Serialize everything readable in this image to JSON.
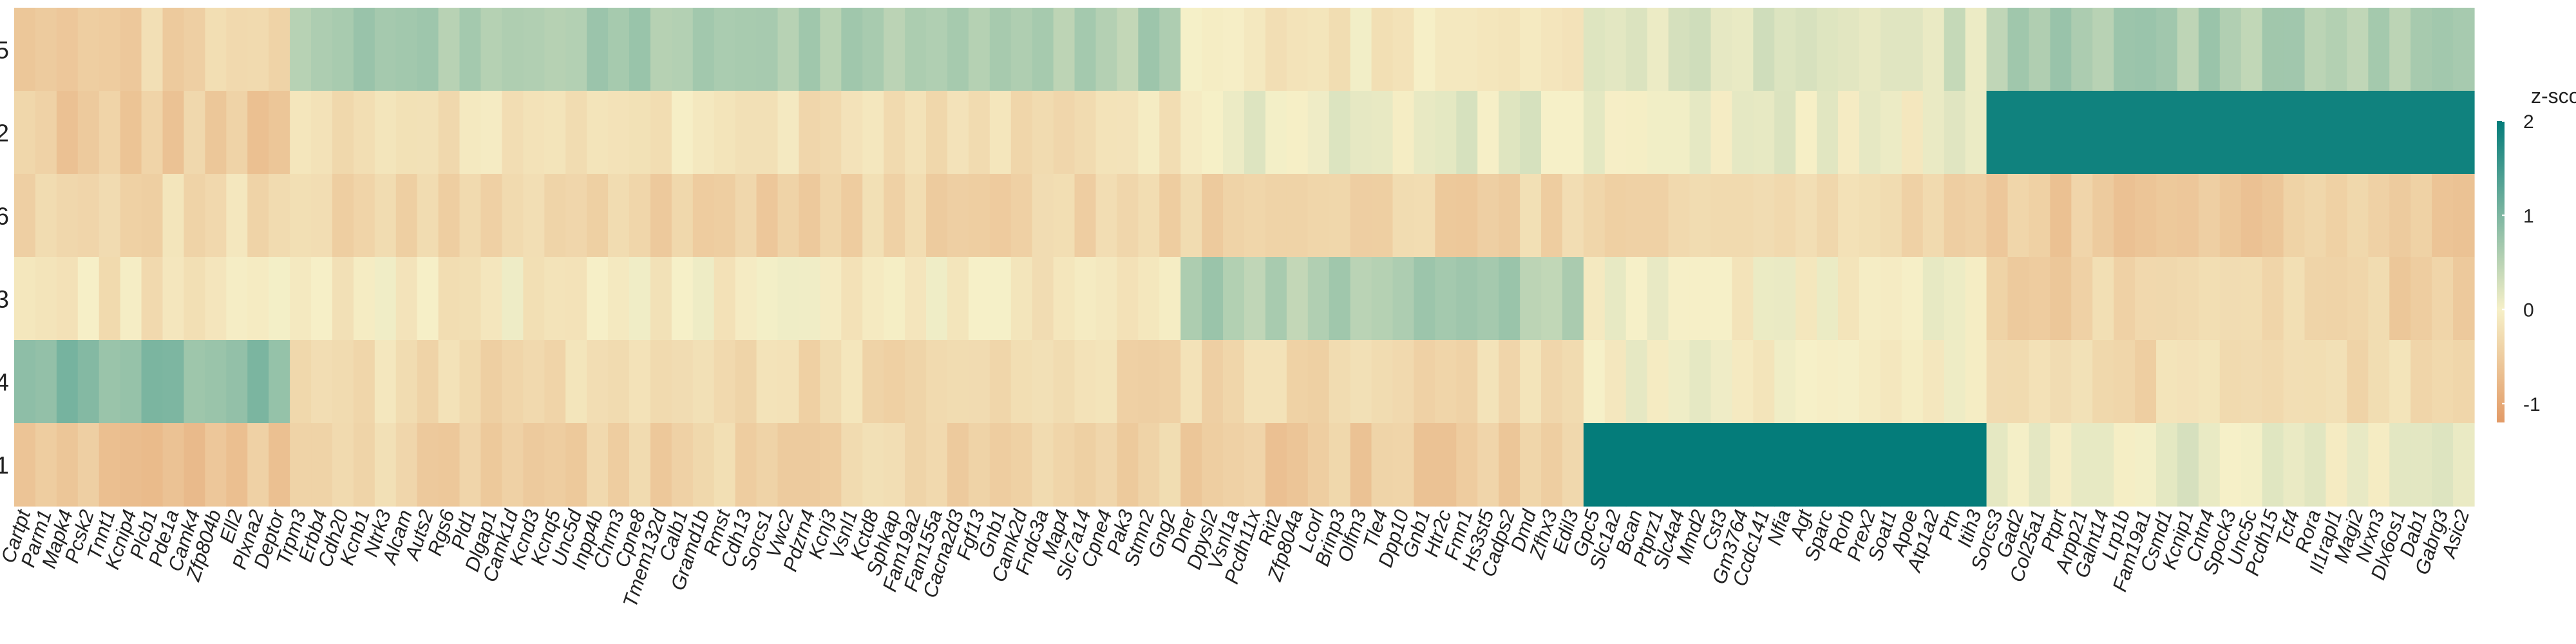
{
  "chart_data": {
    "type": "heatmap",
    "rows": [
      "5",
      "2",
      "6",
      "3",
      "4",
      "1"
    ],
    "columns": [
      "Cartpt",
      "Parm1",
      "Mapk4",
      "Pcsk2",
      "Tnnt1",
      "Kcnip4",
      "Plcb1",
      "Pde1a",
      "Camk4",
      "Zfp804b",
      "Ell2",
      "Plxna2",
      "Deptor",
      "Trpm3",
      "Erbb4",
      "Cdh20",
      "Kcnb1",
      "Ntrk3",
      "Alcam",
      "Auts2",
      "Rgs6",
      "Pld1",
      "Dlgap1",
      "Camk1d",
      "Kcnd3",
      "Kcnq5",
      "Unc5d",
      "Inpp4b",
      "Chrm3",
      "Cpne8",
      "Tmem132d",
      "Calb1",
      "Gramd1b",
      "Rmst",
      "Cdh13",
      "Sorcs1",
      "Vwc2",
      "Pdzrn4",
      "Kcnj3",
      "Vsnl1",
      "Kctd8",
      "Sphkap",
      "Fam19a2",
      "Fam155a",
      "Cacna2d3",
      "Fgf13",
      "Gnb1",
      "Camk2d",
      "Fndc3a",
      "Map4",
      "Slc7a14",
      "Cpne4",
      "Pak3",
      "Stmn2",
      "Gng2",
      "Dner",
      "Dpysl2",
      "Vsnl1a",
      "Pcdh11x",
      "Rit2",
      "Zfp804a",
      "Lcorl",
      "Brinp3",
      "Olfm3",
      "Tle4",
      "Dpp10",
      "Gnb1",
      "Htr2c",
      "Fmn1",
      "Hs3st5",
      "Cadps2",
      "Dmd",
      "Zfhx3",
      "Edil3",
      "Gpc5",
      "Slc1a2",
      "Bcan",
      "Ptprz1",
      "Slc4a4",
      "Mmd2",
      "Cst3",
      "Gm3764",
      "Ccdc141",
      "Nfia",
      "Agt",
      "Sparc",
      "Rorb",
      "Prex2",
      "Soat1",
      "Apoe",
      "Atp1a2",
      "Ptn",
      "Itih3",
      "Sorcs3",
      "Gad2",
      "Col25a1",
      "Ptprt",
      "Arpp21",
      "Galnt14",
      "Lrp1b",
      "Fam19a1",
      "Csmd1",
      "Kcnip1",
      "Cntn4",
      "Spock3",
      "Unc5c",
      "Pcdh15",
      "Tcf4",
      "Rora",
      "Il1rapl1",
      "Magi2",
      "Nrxn3",
      "Dlx6os1",
      "Dab1",
      "Gabrg3",
      "Asic2"
    ],
    "colorbar": {
      "title": "z-score",
      "ticks": [
        "2",
        "1",
        "0",
        "-1"
      ],
      "range": [
        -1.2,
        2
      ],
      "low_color": "#e29a66",
      "mid_color": "#f6f0c8",
      "high_color": "#047c7a"
    },
    "groups": [
      {
        "name": "4",
        "columns": [
          0,
          12
        ],
        "values": {
          "5": -0.4,
          "2": -0.5,
          "6": -0.3,
          "3": -0.15,
          "4": 0.9,
          "1": -0.6
        }
      },
      {
        "name": "3",
        "columns": [
          13,
          54
        ],
        "values": {
          "5": 0.6,
          "2": -0.2,
          "6": -0.4,
          "3": -0.1,
          "4": -0.3,
          "1": -0.4
        }
      },
      {
        "name": "1",
        "columns": [
          55,
          73
        ],
        "values": {
          "5": -0.1,
          "2": 0.1,
          "6": -0.4,
          "3": 0.6,
          "4": -0.3,
          "1": -0.5
        }
      },
      {
        "name": "6",
        "columns": [
          74,
          92
        ],
        "values": {
          "5": 0.25,
          "2": 0.05,
          "6": -0.3,
          "3": -0.05,
          "4": 0.0,
          "1": 2.0
        }
      },
      {
        "name": "2",
        "columns": [
          93,
          117
        ],
        "values": {
          "5": 0.6,
          "2": 1.9,
          "6": -0.5,
          "3": -0.4,
          "4": -0.3,
          "1": 0.1
        }
      }
    ]
  }
}
